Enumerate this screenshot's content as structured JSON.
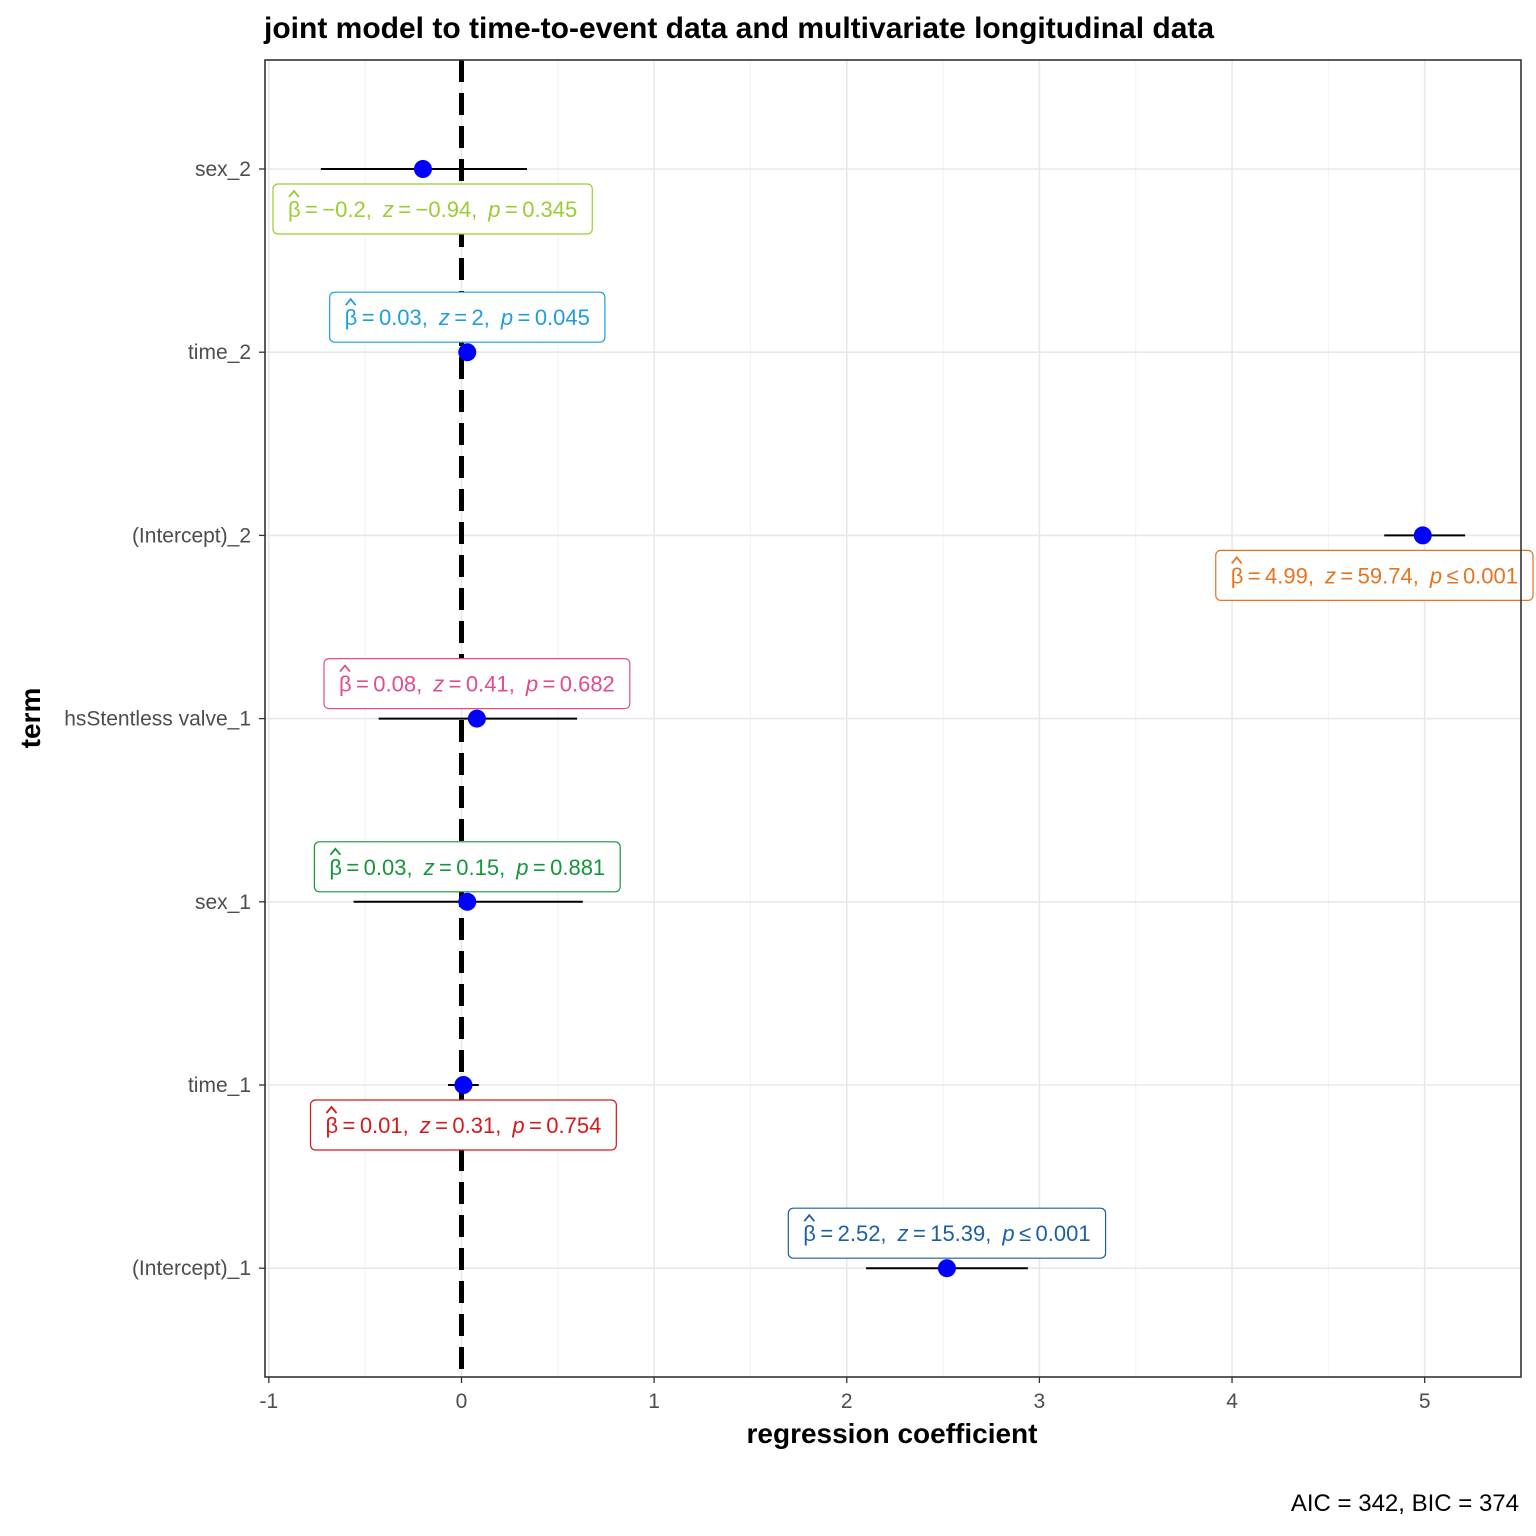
{
  "chart_data": {
    "type": "scatter",
    "title": "joint model to time-to-event data and multivariate longitudinal data",
    "xlabel": "regression coefficient",
    "ylabel": "term",
    "caption": "AIC = 342, BIC = 374",
    "xlim": [
      -1.02,
      5.5
    ],
    "x_ticks": [
      -1,
      0,
      1,
      2,
      3,
      4,
      5
    ],
    "x_tick_labels": [
      "-1",
      "0",
      "1",
      "2",
      "3",
      "4",
      "5"
    ],
    "reference_line": 0,
    "grid": true,
    "point_color": "#0000ff",
    "terms": [
      {
        "term": "sex_2",
        "estimate": -0.2,
        "conf_low": -0.73,
        "conf_high": 0.34,
        "color": "#9acd32",
        "label": {
          "beta": "−0.2",
          "z": "−0.94",
          "p_op": "=",
          "p": "0.345",
          "placement": "below"
        }
      },
      {
        "term": "time_2",
        "estimate": 0.03,
        "conf_low": 0.0,
        "conf_high": 0.06,
        "color": "#1e9ee0",
        "label": {
          "beta": "0.03",
          "z": "2",
          "p_op": "=",
          "p": "0.045",
          "placement": "above"
        }
      },
      {
        "term": "(Intercept)_2",
        "estimate": 4.99,
        "conf_low": 4.79,
        "conf_high": 5.21,
        "color": "#e8731e",
        "label": {
          "beta": "4.99",
          "z": "59.74",
          "p_op": "≤",
          "p": "0.001",
          "placement": "below"
        }
      },
      {
        "term": "hsStentless valve_1",
        "estimate": 0.08,
        "conf_low": -0.43,
        "conf_high": 0.6,
        "color": "#e34b8f",
        "label": {
          "beta": "0.08",
          "z": "0.41",
          "p_op": "=",
          "p": "0.682",
          "placement": "above"
        }
      },
      {
        "term": "sex_1",
        "estimate": 0.03,
        "conf_low": -0.56,
        "conf_high": 0.63,
        "color": "#14973a",
        "label": {
          "beta": "0.03",
          "z": "0.15",
          "p_op": "=",
          "p": "0.881",
          "placement": "above"
        }
      },
      {
        "term": "time_1",
        "estimate": 0.01,
        "conf_low": -0.07,
        "conf_high": 0.09,
        "color": "#d7191c",
        "label": {
          "beta": "0.01",
          "z": "0.31",
          "p_op": "=",
          "p": "0.754",
          "placement": "below"
        }
      },
      {
        "term": "(Intercept)_1",
        "estimate": 2.52,
        "conf_low": 2.1,
        "conf_high": 2.94,
        "color": "#1a5fa8",
        "label": {
          "beta": "2.52",
          "z": "15.39",
          "p_op": "≤",
          "p": "0.001",
          "placement": "above"
        }
      }
    ]
  }
}
